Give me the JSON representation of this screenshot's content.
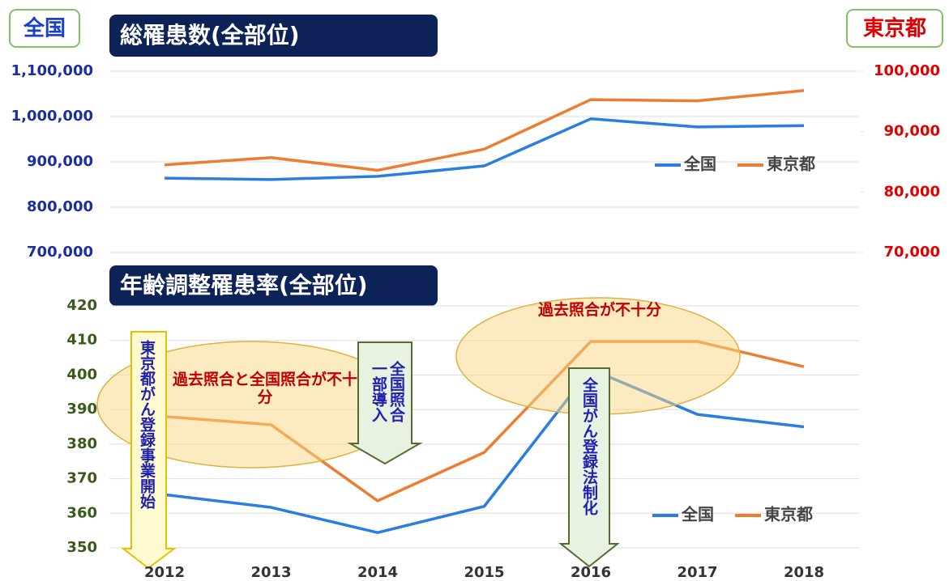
{
  "chart_data": [
    {
      "type": "line",
      "title": "総罹患数(全部位)",
      "ylabel": "全国",
      "y2label": "東京都",
      "ylim": [
        700000,
        1100000
      ],
      "yticks": [
        {
          "value": 700000,
          "label": "700,000"
        },
        {
          "value": 800000,
          "label": "800,000"
        },
        {
          "value": 900000,
          "label": "900,000"
        },
        {
          "value": 1000000,
          "label": "1,000,000"
        },
        {
          "value": 1100000,
          "label": "1,100,000"
        }
      ],
      "y2lim": [
        70000,
        100000
      ],
      "y2ticks": [
        {
          "value": 70000,
          "label": "70,000"
        },
        {
          "value": 80000,
          "label": "80,000"
        },
        {
          "value": 90000,
          "label": "90,000"
        },
        {
          "value": 100000,
          "label": "100,000"
        }
      ],
      "grid": true,
      "series": [
        {
          "name": "全国",
          "color": "#2a7de1",
          "values": [
            864000,
            861000,
            868000,
            891000,
            995000,
            977000,
            980000
          ]
        },
        {
          "name": "東京都",
          "color": "#ed7d31",
          "axis": "y2",
          "values": [
            84500,
            85700,
            83600,
            87100,
            95300,
            95100,
            96800
          ]
        }
      ]
    },
    {
      "type": "line",
      "title": "年齢調整罹患率(全部位)",
      "categories": [
        "2012",
        "2013",
        "2014",
        "2015",
        "2016",
        "2017",
        "2018"
      ],
      "ylim": [
        350,
        420
      ],
      "yticks": [
        350,
        360,
        370,
        380,
        390,
        400,
        410,
        420
      ],
      "grid": true,
      "series": [
        {
          "name": "全国",
          "color": "#2a7de1",
          "values": [
            365.4,
            361.7,
            354.4,
            362,
            401.7,
            388.6,
            385
          ]
        },
        {
          "name": "東京都",
          "color": "#ed7d31",
          "values": [
            388,
            385.6,
            363.6,
            377.6,
            409.7,
            409.7,
            402.4
          ]
        }
      ],
      "annotations": [
        {
          "text": "東京都がん登録事業開始"
        },
        {
          "text": "過去照合と全国照合が不十分"
        },
        {
          "text": "全国照合一部導入"
        },
        {
          "text": "過去照合が不十分"
        },
        {
          "text": "全国がん登録法制化"
        }
      ]
    }
  ]
}
